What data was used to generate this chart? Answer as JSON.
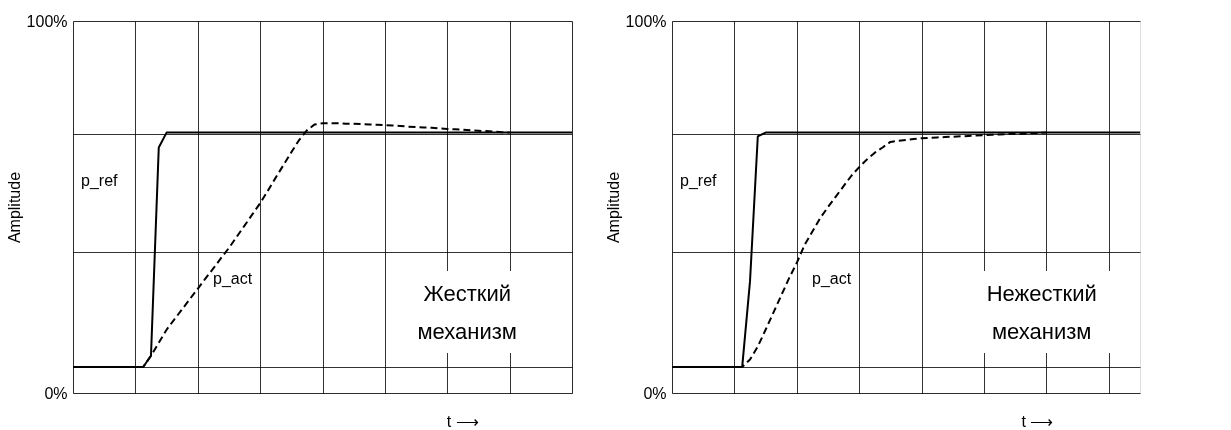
{
  "chart_data": [
    {
      "type": "line",
      "xlabel": "t ⟶",
      "ylabel": "Amplitude",
      "ylim": [
        0,
        100
      ],
      "categories": [
        null,
        null,
        null,
        null,
        null,
        null,
        null,
        null,
        null,
        null,
        null,
        null,
        null,
        null,
        null,
        null,
        null,
        null,
        null,
        null,
        null,
        null,
        null,
        null,
        null,
        null,
        null,
        null,
        null,
        null,
        null,
        null,
        null,
        null,
        null,
        null,
        null,
        null,
        null,
        null,
        null,
        null,
        null,
        null,
        null,
        null,
        null,
        null,
        null,
        null,
        null,
        null,
        null,
        null,
        null,
        null,
        null,
        null,
        null,
        null,
        null,
        null,
        null,
        null,
        null
      ],
      "yticks": [
        {
          "value": 0,
          "label": "0%"
        },
        {
          "value": 7,
          "label": null
        },
        {
          "value": 38,
          "label": null
        },
        {
          "value": 69.5,
          "label": null
        },
        {
          "value": 100,
          "label": "100%"
        }
      ],
      "tick_labels": "y",
      "grid": true,
      "legend": false,
      "marker": "none",
      "series": [
        {
          "name": "p_ref",
          "color": "#000000",
          "line_style": "solid",
          "values": [
            7,
            7,
            7,
            7,
            7,
            7,
            7,
            7,
            7,
            7,
            10,
            66,
            70,
            70,
            70,
            70,
            70,
            70,
            70,
            70,
            70,
            70,
            70,
            70,
            70,
            70,
            70,
            70,
            70,
            70,
            70,
            70,
            70,
            70,
            70,
            70,
            70,
            70,
            70,
            70,
            70,
            70,
            70,
            70,
            70,
            70,
            70,
            70,
            70,
            70,
            70,
            70,
            70,
            70,
            70,
            70,
            70,
            70,
            70,
            70,
            70,
            70,
            70,
            70,
            70
          ]
        },
        {
          "name": "p_act",
          "color": "#000000",
          "line_style": "dashed",
          "values": [
            7,
            7,
            7,
            7,
            7,
            7,
            7,
            7,
            7,
            7,
            10,
            13.5,
            17,
            19.8,
            22.5,
            25.3,
            28,
            30.8,
            33.5,
            36.3,
            39,
            42,
            45,
            48,
            51,
            54.4,
            57.9,
            61.3,
            64.7,
            68,
            70.6,
            72.2,
            72.5,
            72.5,
            72.5,
            72.4,
            72.4,
            72.3,
            72.2,
            72.1,
            72,
            71.9,
            71.8,
            71.6,
            71.5,
            71.4,
            71.3,
            71.1,
            71,
            70.9,
            70.8,
            70.6,
            70.5,
            70.4,
            70.3,
            70.1,
            70,
            null,
            null,
            null,
            null,
            null,
            null,
            null,
            null
          ]
        }
      ],
      "annotations": [
        "Жесткий\nмеханизм"
      ]
    },
    {
      "type": "line",
      "xlabel": "t ⟶",
      "ylabel": "Amplitude",
      "ylim": [
        0,
        100
      ],
      "categories": [
        null,
        null,
        null,
        null,
        null,
        null,
        null,
        null,
        null,
        null,
        null,
        null,
        null,
        null,
        null,
        null,
        null,
        null,
        null,
        null,
        null,
        null,
        null,
        null,
        null,
        null,
        null,
        null,
        null,
        null,
        null,
        null,
        null,
        null,
        null,
        null,
        null,
        null,
        null,
        null,
        null,
        null,
        null,
        null,
        null,
        null,
        null,
        null,
        null,
        null,
        null,
        null,
        null,
        null,
        null,
        null,
        null,
        null,
        null,
        null,
        null
      ],
      "yticks": [
        {
          "value": 0,
          "label": "0%"
        },
        {
          "value": 7,
          "label": null
        },
        {
          "value": 38,
          "label": null
        },
        {
          "value": 69.5,
          "label": null
        },
        {
          "value": 100,
          "label": "100%"
        }
      ],
      "tick_labels": "y",
      "grid": true,
      "legend": false,
      "marker": "none",
      "series": [
        {
          "name": "p_ref",
          "color": "#000000",
          "line_style": "solid",
          "values": [
            7,
            7,
            7,
            7,
            7,
            7,
            7,
            7,
            7,
            7,
            30,
            69,
            70,
            70,
            70,
            70,
            70,
            70,
            70,
            70,
            70,
            70,
            70,
            70,
            70,
            70,
            70,
            70,
            70,
            70,
            70,
            70,
            70,
            70,
            70,
            70,
            70,
            70,
            70,
            70,
            70,
            70,
            70,
            70,
            70,
            70,
            70,
            70,
            70,
            70,
            70,
            70,
            70,
            70,
            70,
            70,
            70,
            70,
            70,
            70,
            70
          ]
        },
        {
          "name": "p_act",
          "color": "#000000",
          "line_style": "dashed",
          "values": [
            7,
            7,
            7,
            7,
            7,
            7,
            7,
            7,
            7,
            7,
            9,
            12.5,
            17,
            21.6,
            26.2,
            30.8,
            35,
            39.8,
            43.4,
            47,
            50,
            52.8,
            55.6,
            58.4,
            60.7,
            62.8,
            64.6,
            66,
            67.5,
            67.8,
            68,
            68.3,
            68.5,
            68.6,
            68.7,
            68.8,
            68.9,
            69,
            69.1,
            69.2,
            69.3,
            69.4,
            69.5,
            69.6,
            69.7,
            69.7,
            69.8,
            69.9,
            70,
            null,
            null,
            null,
            null,
            null,
            null,
            null,
            null,
            null,
            null,
            null,
            null
          ]
        }
      ],
      "annotations": [
        "Нежесткий\nмеханизм"
      ]
    }
  ]
}
